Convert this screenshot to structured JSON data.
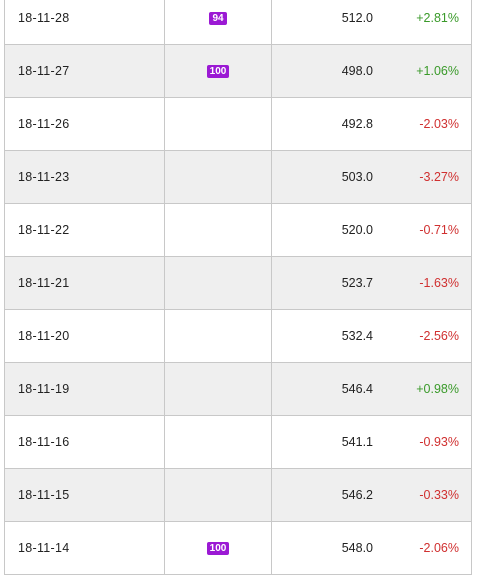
{
  "colors": {
    "badge": "#9b19d4",
    "up": "#3a9a2a",
    "down": "#d03030",
    "alt_row": "#efefef",
    "border": "#c8c8c8"
  },
  "rows": [
    {
      "date": "18-11-28",
      "badge": "94",
      "close": "512.0",
      "change": "+2.81%",
      "dir": "up"
    },
    {
      "date": "18-11-27",
      "badge": "100",
      "close": "498.0",
      "change": "+1.06%",
      "dir": "up"
    },
    {
      "date": "18-11-26",
      "badge": "",
      "close": "492.8",
      "change": "-2.03%",
      "dir": "down"
    },
    {
      "date": "18-11-23",
      "badge": "",
      "close": "503.0",
      "change": "-3.27%",
      "dir": "down"
    },
    {
      "date": "18-11-22",
      "badge": "",
      "close": "520.0",
      "change": "-0.71%",
      "dir": "down"
    },
    {
      "date": "18-11-21",
      "badge": "",
      "close": "523.7",
      "change": "-1.63%",
      "dir": "down"
    },
    {
      "date": "18-11-20",
      "badge": "",
      "close": "532.4",
      "change": "-2.56%",
      "dir": "down"
    },
    {
      "date": "18-11-19",
      "badge": "",
      "close": "546.4",
      "change": "+0.98%",
      "dir": "up"
    },
    {
      "date": "18-11-16",
      "badge": "",
      "close": "541.1",
      "change": "-0.93%",
      "dir": "down"
    },
    {
      "date": "18-11-15",
      "badge": "",
      "close": "546.2",
      "change": "-0.33%",
      "dir": "down"
    },
    {
      "date": "18-11-14",
      "badge": "100",
      "close": "548.0",
      "change": "-2.06%",
      "dir": "down"
    }
  ]
}
